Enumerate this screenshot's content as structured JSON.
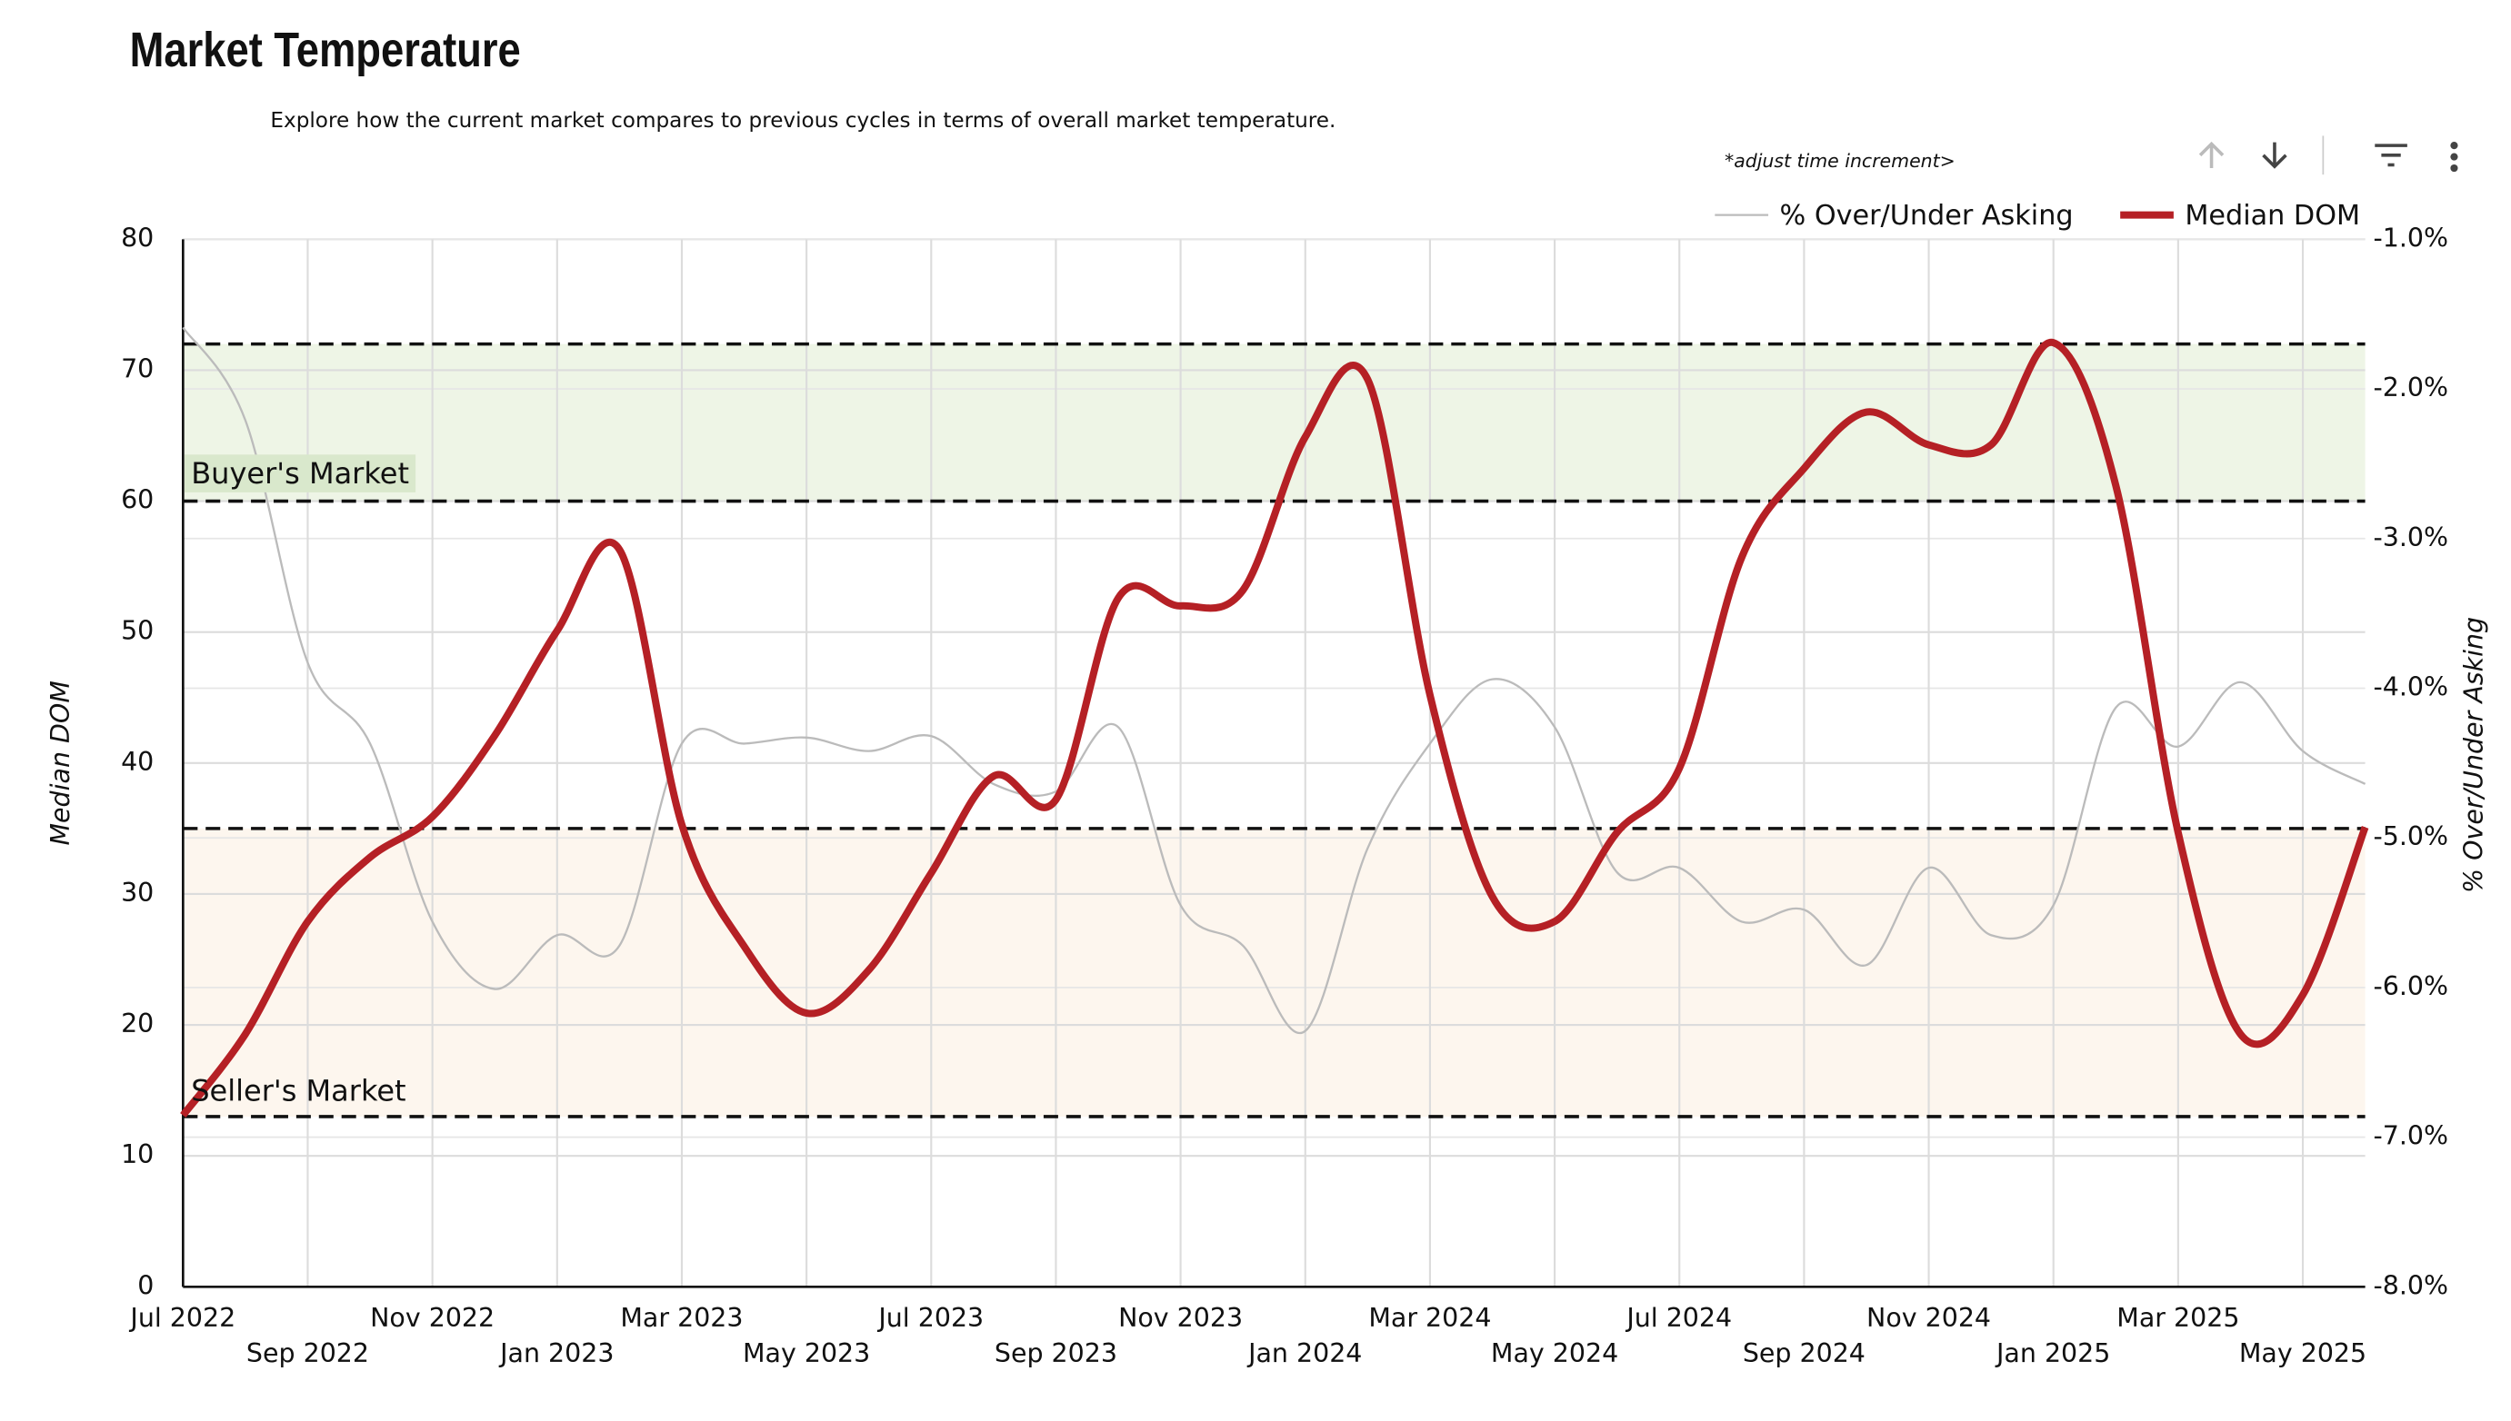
{
  "title": "Market Temperature",
  "subtitle": "Explore how the current market compares to previous cycles in terms of overall market temperature.",
  "controls": {
    "time_increment": "*adjust time increment>"
  },
  "chart_data": {
    "type": "line",
    "y_label": "Median DOM",
    "y2_label": "% Over/Under Asking",
    "xlim": [
      "2022-07",
      "2025-06"
    ],
    "xticks": [
      {
        "value": "2022-07",
        "label": "Jul 2022"
      },
      {
        "value": "2022-09",
        "label": "Sep 2022"
      },
      {
        "value": "2022-11",
        "label": "Nov 2022"
      },
      {
        "value": "2023-01",
        "label": "Jan 2023"
      },
      {
        "value": "2023-03",
        "label": "Mar 2023"
      },
      {
        "value": "2023-05",
        "label": "May 2023"
      },
      {
        "value": "2023-07",
        "label": "Jul 2023"
      },
      {
        "value": "2023-09",
        "label": "Sep 2023"
      },
      {
        "value": "2023-11",
        "label": "Nov 2023"
      },
      {
        "value": "2024-01",
        "label": "Jan 2024"
      },
      {
        "value": "2024-03",
        "label": "Mar 2024"
      },
      {
        "value": "2024-05",
        "label": "May 2024"
      },
      {
        "value": "2024-07",
        "label": "Jul 2024"
      },
      {
        "value": "2024-09",
        "label": "Sep 2024"
      },
      {
        "value": "2024-11",
        "label": "Nov 2024"
      },
      {
        "value": "2025-01",
        "label": "Jan 2025"
      },
      {
        "value": "2025-03",
        "label": "Mar 2025"
      },
      {
        "value": "2025-05",
        "label": "May 2025"
      }
    ],
    "ylim": [
      0,
      80
    ],
    "yticks": [
      0,
      10,
      20,
      30,
      40,
      50,
      60,
      70,
      80
    ],
    "y2lim": [
      -8,
      -1
    ],
    "y2ticks": [
      {
        "value": -8,
        "label": "-8.0%"
      },
      {
        "value": -7,
        "label": "-7.0%"
      },
      {
        "value": -6,
        "label": "-6.0%"
      },
      {
        "value": -5,
        "label": "-5.0%"
      },
      {
        "value": -4,
        "label": "-4.0%"
      },
      {
        "value": -3,
        "label": "-3.0%"
      },
      {
        "value": -2,
        "label": "-2.0%"
      },
      {
        "value": -1,
        "label": "-1.0%"
      }
    ],
    "grid": true,
    "bands": [
      {
        "label": "Buyer's Market",
        "range": [
          60,
          72
        ],
        "color": "#eef5e6"
      },
      {
        "label": "Seller's Market",
        "range": [
          13,
          35
        ],
        "color": "#fdf6ee"
      }
    ],
    "x": [
      "2022-07",
      "2022-08",
      "2022-09",
      "2022-10",
      "2022-11",
      "2022-12",
      "2023-01",
      "2023-02",
      "2023-03",
      "2023-04",
      "2023-05",
      "2023-06",
      "2023-07",
      "2023-08",
      "2023-09",
      "2023-10",
      "2023-11",
      "2023-12",
      "2024-01",
      "2024-02",
      "2024-03",
      "2024-04",
      "2024-05",
      "2024-06",
      "2024-07",
      "2024-08",
      "2024-09",
      "2024-10",
      "2024-11",
      "2024-12",
      "2025-01",
      "2025-02",
      "2025-03",
      "2025-04",
      "2025-05",
      "2025-06"
    ],
    "series": [
      {
        "name": "% Over/Under Asking",
        "color": "#bbbbbb",
        "axis": "y2",
        "values": [
          -1.59,
          -2.21,
          -3.83,
          -4.37,
          -5.56,
          -6.01,
          -5.65,
          -5.72,
          -4.37,
          -4.37,
          -4.33,
          -4.42,
          -4.32,
          -4.64,
          -4.69,
          -4.26,
          -5.45,
          -5.72,
          -6.29,
          -5.07,
          -4.37,
          -3.94,
          -4.26,
          -5.23,
          -5.2,
          -5.56,
          -5.48,
          -5.85,
          -5.2,
          -5.65,
          -5.45,
          -4.13,
          -4.39,
          -3.96,
          -4.42,
          -4.64
        ]
      },
      {
        "name": "Median DOM",
        "color": "#b52025",
        "values": [
          13.1,
          19.3,
          27.9,
          32.8,
          35.9,
          42.1,
          50.1,
          56.3,
          35.3,
          26,
          20.9,
          24.2,
          31.6,
          39,
          37.2,
          52.6,
          52,
          53.2,
          64.9,
          69.3,
          45.2,
          29.8,
          27.9,
          34.7,
          39.6,
          55.7,
          62.5,
          66.8,
          64.3,
          64.3,
          72.1,
          61.2,
          34.7,
          19.3,
          22.3,
          35.1
        ]
      }
    ]
  }
}
